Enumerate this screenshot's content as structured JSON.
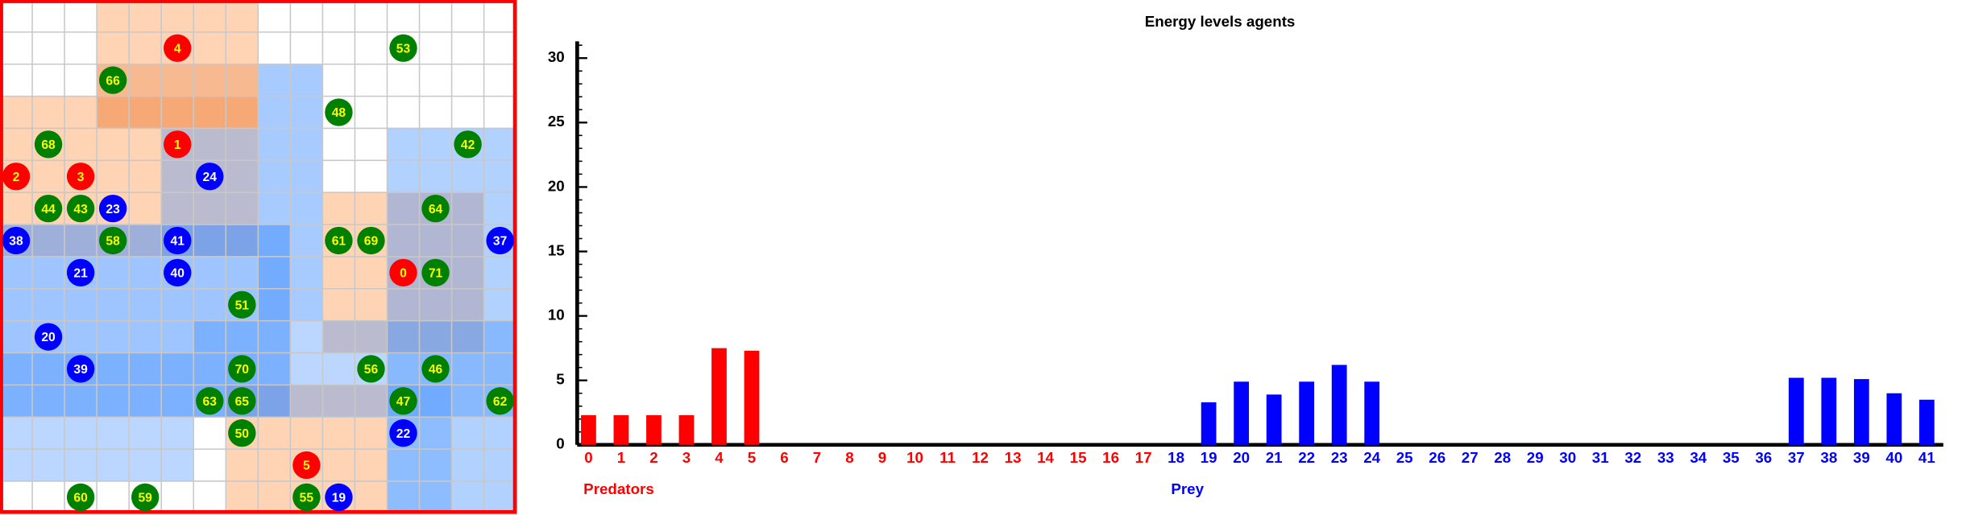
{
  "grid": {
    "agents": [
      {
        "label": "4",
        "color": "#ff0000"
      },
      {
        "label": "53",
        "color": "#008000"
      },
      {
        "label": "66",
        "color": "#008000"
      },
      {
        "label": "48",
        "color": "#008000"
      },
      {
        "label": "68",
        "color": "#008000"
      },
      {
        "label": "1",
        "color": "#ff0000"
      },
      {
        "label": "42",
        "color": "#008000"
      },
      {
        "label": "2",
        "color": "#ff0000"
      },
      {
        "label": "3",
        "color": "#ff0000"
      },
      {
        "label": "24",
        "color": "#0000ff"
      },
      {
        "label": "44",
        "color": "#008000"
      },
      {
        "label": "43",
        "color": "#008000"
      },
      {
        "label": "23",
        "color": "#0000ff"
      },
      {
        "label": "64",
        "color": "#008000"
      },
      {
        "label": "38",
        "color": "#0000ff"
      },
      {
        "label": "58",
        "color": "#008000"
      },
      {
        "label": "41",
        "color": "#0000ff"
      },
      {
        "label": "61",
        "color": "#008000"
      },
      {
        "label": "69",
        "color": "#008000"
      },
      {
        "label": "37",
        "color": "#0000ff"
      },
      {
        "label": "21",
        "color": "#0000ff"
      },
      {
        "label": "40",
        "color": "#0000ff"
      },
      {
        "label": "0",
        "color": "#ff0000"
      },
      {
        "label": "71",
        "color": "#008000"
      },
      {
        "label": "51",
        "color": "#008000"
      },
      {
        "label": "20",
        "color": "#0000ff"
      },
      {
        "label": "39",
        "color": "#0000ff"
      },
      {
        "label": "70",
        "color": "#008000"
      },
      {
        "label": "56",
        "color": "#008000"
      },
      {
        "label": "46",
        "color": "#008000"
      },
      {
        "label": "63",
        "color": "#008000"
      },
      {
        "label": "65",
        "color": "#008000"
      },
      {
        "label": "47",
        "color": "#008000"
      },
      {
        "label": "62",
        "color": "#008000"
      },
      {
        "label": "50",
        "color": "#008000"
      },
      {
        "label": "22",
        "color": "#0000ff"
      },
      {
        "label": "5",
        "color": "#ff0000"
      },
      {
        "label": "60",
        "color": "#008000"
      },
      {
        "label": "59",
        "color": "#008000"
      },
      {
        "label": "55",
        "color": "#008000"
      },
      {
        "label": "19",
        "color": "#0000ff"
      }
    ]
  },
  "chart_data": {
    "type": "bar",
    "title": "Energy levels agents",
    "categories": [
      "0",
      "1",
      "2",
      "3",
      "4",
      "5",
      "6",
      "7",
      "8",
      "9",
      "10",
      "11",
      "12",
      "13",
      "14",
      "15",
      "16",
      "17",
      "18",
      "19",
      "20",
      "21",
      "22",
      "23",
      "24",
      "25",
      "26",
      "27",
      "28",
      "29",
      "30",
      "31",
      "32",
      "33",
      "34",
      "35",
      "36",
      "37",
      "38",
      "39",
      "40",
      "41"
    ],
    "series": [
      {
        "name": "Predators",
        "color": "#ff0000",
        "values": [
          2.3,
          2.3,
          2.3,
          2.3,
          7.5,
          7.3,
          0,
          0,
          0,
          0,
          0,
          0,
          0,
          0,
          0,
          0,
          0,
          0,
          null,
          null,
          null,
          null,
          null,
          null,
          null,
          null,
          null,
          null,
          null,
          null,
          null,
          null,
          null,
          null,
          null,
          null,
          null,
          null,
          null,
          null,
          null,
          null
        ]
      },
      {
        "name": "Prey",
        "color": "#0000ff",
        "values": [
          null,
          null,
          null,
          null,
          null,
          null,
          null,
          null,
          null,
          null,
          null,
          null,
          null,
          null,
          null,
          null,
          null,
          null,
          0,
          3.3,
          4.9,
          3.9,
          4.9,
          6.2,
          4.9,
          0,
          0,
          0,
          0,
          0,
          0,
          0,
          0,
          0,
          0,
          0,
          0,
          5.2,
          5.2,
          5.1,
          4.0,
          3.5
        ]
      }
    ],
    "ylim": [
      0,
      31.3
    ],
    "yticks": [
      0,
      5,
      10,
      15,
      20,
      25,
      30
    ]
  }
}
